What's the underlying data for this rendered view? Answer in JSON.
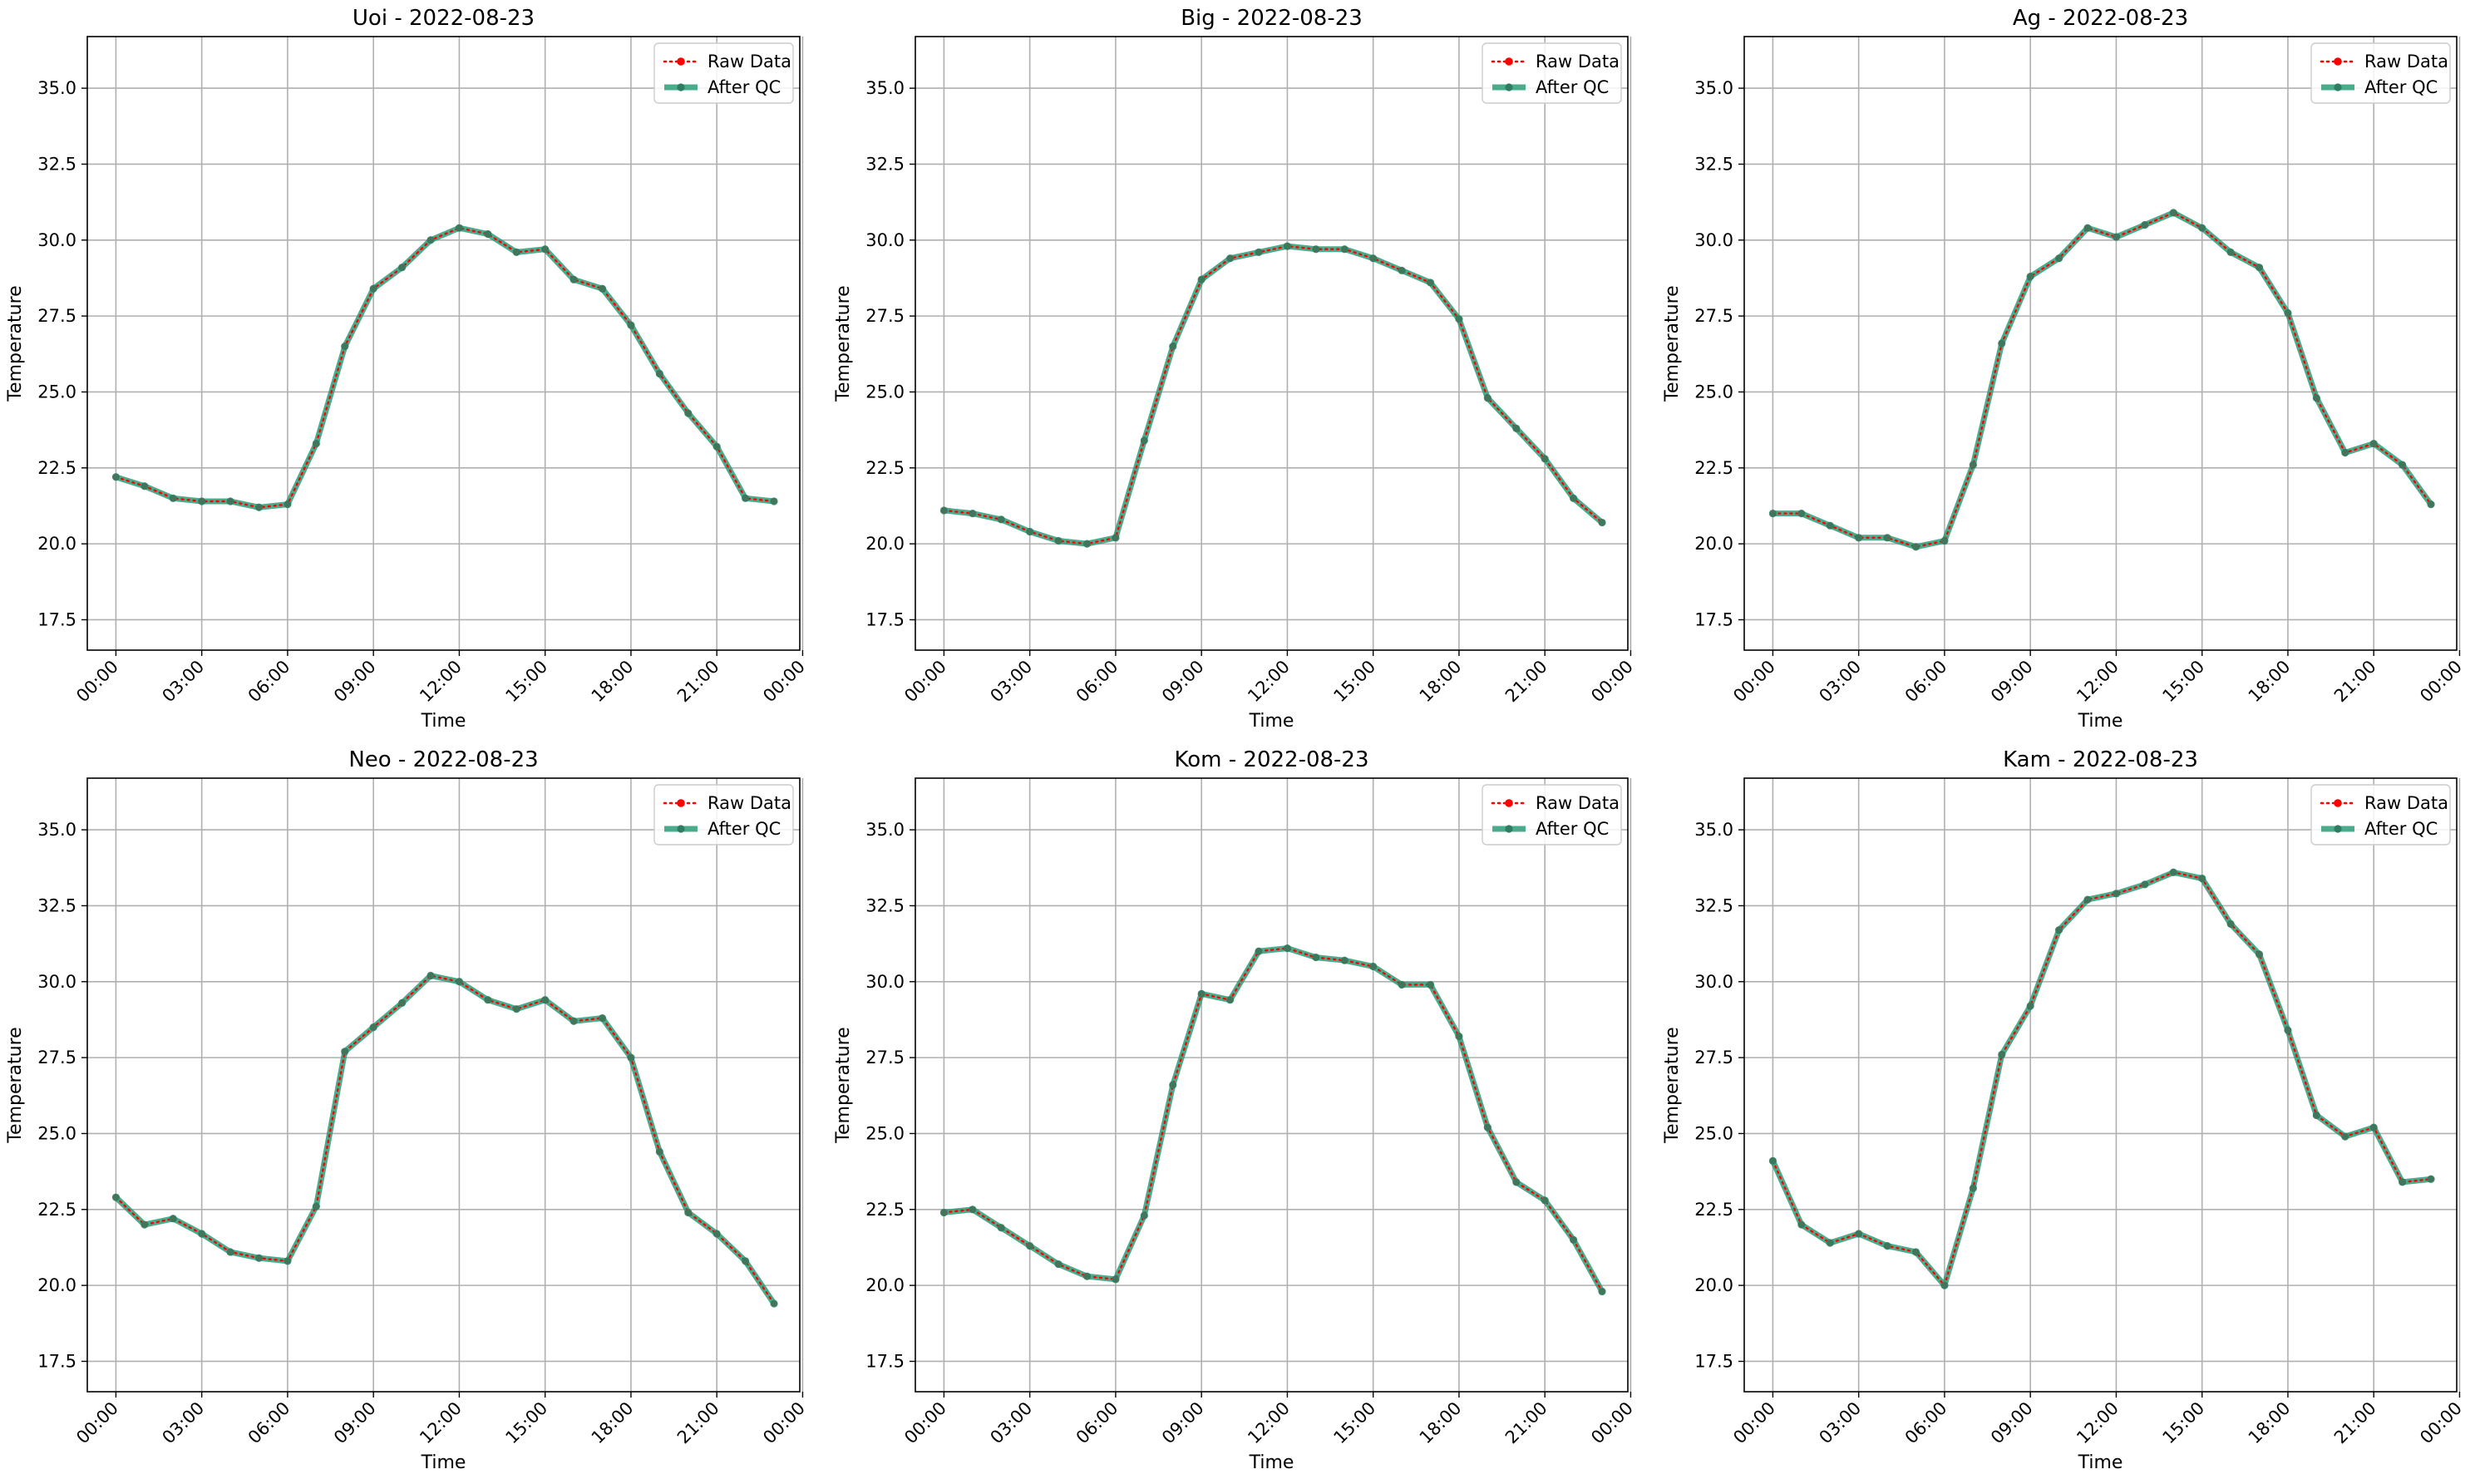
{
  "figure": {
    "background": "#ffffff"
  },
  "colors": {
    "raw": "#ff0000",
    "qc": "#2a9d78",
    "grid": "#b0b0b0"
  },
  "chart_data": [
    {
      "type": "line",
      "title": "Uoi - 2022-08-23",
      "xlabel": "Time",
      "ylabel": "Temperature",
      "ylim": [
        16.5,
        36.7
      ],
      "xlim_hours": [
        -1.0,
        23.9
      ],
      "yticks": [
        "17.5",
        "20.0",
        "22.5",
        "25.0",
        "27.5",
        "30.0",
        "32.5",
        "35.0"
      ],
      "xticks": [
        "00:00",
        "03:00",
        "06:00",
        "09:00",
        "12:00",
        "15:00",
        "18:00",
        "21:00",
        "00:00"
      ],
      "grid": true,
      "legend": "top-right",
      "x": [
        "00:00",
        "01:00",
        "02:00",
        "03:00",
        "04:00",
        "05:00",
        "06:00",
        "07:00",
        "08:00",
        "09:00",
        "10:00",
        "11:00",
        "12:00",
        "13:00",
        "14:00",
        "15:00",
        "16:00",
        "17:00",
        "18:00",
        "19:00",
        "20:00",
        "21:00",
        "22:00",
        "23:00"
      ],
      "series": [
        {
          "name": "Raw Data",
          "values": [
            22.2,
            21.9,
            21.5,
            21.4,
            21.4,
            21.2,
            21.3,
            23.3,
            26.5,
            28.4,
            29.1,
            30.0,
            30.4,
            30.2,
            29.6,
            29.7,
            28.7,
            28.4,
            27.2,
            25.6,
            24.3,
            23.2,
            21.5,
            21.4
          ]
        },
        {
          "name": "After QC",
          "values": [
            22.2,
            21.9,
            21.5,
            21.4,
            21.4,
            21.2,
            21.3,
            23.3,
            26.5,
            28.4,
            29.1,
            30.0,
            30.4,
            30.2,
            29.6,
            29.7,
            28.7,
            28.4,
            27.2,
            25.6,
            24.3,
            23.2,
            21.5,
            21.4
          ]
        }
      ]
    },
    {
      "type": "line",
      "title": "Big - 2022-08-23",
      "xlabel": "Time",
      "ylabel": "Temperature",
      "ylim": [
        16.5,
        36.7
      ],
      "xlim_hours": [
        -1.0,
        23.9
      ],
      "yticks": [
        "17.5",
        "20.0",
        "22.5",
        "25.0",
        "27.5",
        "30.0",
        "32.5",
        "35.0"
      ],
      "xticks": [
        "00:00",
        "03:00",
        "06:00",
        "09:00",
        "12:00",
        "15:00",
        "18:00",
        "21:00",
        "00:00"
      ],
      "grid": true,
      "legend": "top-right",
      "x": [
        "00:00",
        "01:00",
        "02:00",
        "03:00",
        "04:00",
        "05:00",
        "06:00",
        "07:00",
        "08:00",
        "09:00",
        "10:00",
        "11:00",
        "12:00",
        "13:00",
        "14:00",
        "15:00",
        "16:00",
        "17:00",
        "18:00",
        "19:00",
        "20:00",
        "21:00",
        "22:00",
        "23:00"
      ],
      "series": [
        {
          "name": "Raw Data",
          "values": [
            21.1,
            21.0,
            20.8,
            20.4,
            20.1,
            20.0,
            20.2,
            23.4,
            26.5,
            28.7,
            29.4,
            29.6,
            29.8,
            29.7,
            29.7,
            29.4,
            29.0,
            28.6,
            27.4,
            24.8,
            23.8,
            22.8,
            21.5,
            20.7
          ]
        },
        {
          "name": "After QC",
          "values": [
            21.1,
            21.0,
            20.8,
            20.4,
            20.1,
            20.0,
            20.2,
            23.4,
            26.5,
            28.7,
            29.4,
            29.6,
            29.8,
            29.7,
            29.7,
            29.4,
            29.0,
            28.6,
            27.4,
            24.8,
            23.8,
            22.8,
            21.5,
            20.7
          ]
        }
      ]
    },
    {
      "type": "line",
      "title": "Ag - 2022-08-23",
      "xlabel": "Time",
      "ylabel": "Temperature",
      "ylim": [
        16.5,
        36.7
      ],
      "xlim_hours": [
        -1.0,
        23.9
      ],
      "yticks": [
        "17.5",
        "20.0",
        "22.5",
        "25.0",
        "27.5",
        "30.0",
        "32.5",
        "35.0"
      ],
      "xticks": [
        "00:00",
        "03:00",
        "06:00",
        "09:00",
        "12:00",
        "15:00",
        "18:00",
        "21:00",
        "00:00"
      ],
      "grid": true,
      "legend": "top-right",
      "x": [
        "00:00",
        "01:00",
        "02:00",
        "03:00",
        "04:00",
        "05:00",
        "06:00",
        "07:00",
        "08:00",
        "09:00",
        "10:00",
        "11:00",
        "12:00",
        "13:00",
        "14:00",
        "15:00",
        "16:00",
        "17:00",
        "18:00",
        "19:00",
        "20:00",
        "21:00",
        "22:00",
        "23:00"
      ],
      "series": [
        {
          "name": "Raw Data",
          "values": [
            21.0,
            21.0,
            20.6,
            20.2,
            20.2,
            19.9,
            20.1,
            22.6,
            26.6,
            28.8,
            29.4,
            30.4,
            30.1,
            30.5,
            30.9,
            30.4,
            29.6,
            29.1,
            27.6,
            24.8,
            23.0,
            23.3,
            22.6,
            21.3
          ]
        },
        {
          "name": "After QC",
          "values": [
            21.0,
            21.0,
            20.6,
            20.2,
            20.2,
            19.9,
            20.1,
            22.6,
            26.6,
            28.8,
            29.4,
            30.4,
            30.1,
            30.5,
            30.9,
            30.4,
            29.6,
            29.1,
            27.6,
            24.8,
            23.0,
            23.3,
            22.6,
            21.3
          ]
        }
      ]
    },
    {
      "type": "line",
      "title": "Neo - 2022-08-23",
      "xlabel": "Time",
      "ylabel": "Temperature",
      "ylim": [
        16.5,
        36.7
      ],
      "xlim_hours": [
        -1.0,
        23.9
      ],
      "yticks": [
        "17.5",
        "20.0",
        "22.5",
        "25.0",
        "27.5",
        "30.0",
        "32.5",
        "35.0"
      ],
      "xticks": [
        "00:00",
        "03:00",
        "06:00",
        "09:00",
        "12:00",
        "15:00",
        "18:00",
        "21:00",
        "00:00"
      ],
      "grid": true,
      "legend": "top-right",
      "x": [
        "00:00",
        "01:00",
        "02:00",
        "03:00",
        "04:00",
        "05:00",
        "06:00",
        "07:00",
        "08:00",
        "09:00",
        "10:00",
        "11:00",
        "12:00",
        "13:00",
        "14:00",
        "15:00",
        "16:00",
        "17:00",
        "18:00",
        "19:00",
        "20:00",
        "21:00",
        "22:00",
        "23:00"
      ],
      "series": [
        {
          "name": "Raw Data",
          "values": [
            22.9,
            22.0,
            22.2,
            21.7,
            21.1,
            20.9,
            20.8,
            22.6,
            27.7,
            28.5,
            29.3,
            30.2,
            30.0,
            29.4,
            29.1,
            29.4,
            28.7,
            28.8,
            27.5,
            24.4,
            22.4,
            21.7,
            20.8,
            19.4
          ]
        },
        {
          "name": "After QC",
          "values": [
            22.9,
            22.0,
            22.2,
            21.7,
            21.1,
            20.9,
            20.8,
            22.6,
            27.7,
            28.5,
            29.3,
            30.2,
            30.0,
            29.4,
            29.1,
            29.4,
            28.7,
            28.8,
            27.5,
            24.4,
            22.4,
            21.7,
            20.8,
            19.4
          ]
        }
      ]
    },
    {
      "type": "line",
      "title": "Kom - 2022-08-23",
      "xlabel": "Time",
      "ylabel": "Temperature",
      "ylim": [
        16.5,
        36.7
      ],
      "xlim_hours": [
        -1.0,
        23.9
      ],
      "yticks": [
        "17.5",
        "20.0",
        "22.5",
        "25.0",
        "27.5",
        "30.0",
        "32.5",
        "35.0"
      ],
      "xticks": [
        "00:00",
        "03:00",
        "06:00",
        "09:00",
        "12:00",
        "15:00",
        "18:00",
        "21:00",
        "00:00"
      ],
      "grid": true,
      "legend": "top-right",
      "x": [
        "00:00",
        "01:00",
        "02:00",
        "03:00",
        "04:00",
        "05:00",
        "06:00",
        "07:00",
        "08:00",
        "09:00",
        "10:00",
        "11:00",
        "12:00",
        "13:00",
        "14:00",
        "15:00",
        "16:00",
        "17:00",
        "18:00",
        "19:00",
        "20:00",
        "21:00",
        "22:00",
        "23:00"
      ],
      "series": [
        {
          "name": "Raw Data",
          "values": [
            22.4,
            22.5,
            21.9,
            21.3,
            20.7,
            20.3,
            20.2,
            22.3,
            26.6,
            29.6,
            29.4,
            31.0,
            31.1,
            30.8,
            30.7,
            30.5,
            29.9,
            29.9,
            28.2,
            25.2,
            23.4,
            22.8,
            21.5,
            19.8
          ]
        },
        {
          "name": "After QC",
          "values": [
            22.4,
            22.5,
            21.9,
            21.3,
            20.7,
            20.3,
            20.2,
            22.3,
            26.6,
            29.6,
            29.4,
            31.0,
            31.1,
            30.8,
            30.7,
            30.5,
            29.9,
            29.9,
            28.2,
            25.2,
            23.4,
            22.8,
            21.5,
            19.8
          ]
        }
      ]
    },
    {
      "type": "line",
      "title": "Kam - 2022-08-23",
      "xlabel": "Time",
      "ylabel": "Temperature",
      "ylim": [
        16.5,
        36.7
      ],
      "xlim_hours": [
        -1.0,
        23.9
      ],
      "yticks": [
        "17.5",
        "20.0",
        "22.5",
        "25.0",
        "27.5",
        "30.0",
        "32.5",
        "35.0"
      ],
      "xticks": [
        "00:00",
        "03:00",
        "06:00",
        "09:00",
        "12:00",
        "15:00",
        "18:00",
        "21:00",
        "00:00"
      ],
      "grid": true,
      "legend": "top-right",
      "x": [
        "00:00",
        "01:00",
        "02:00",
        "03:00",
        "04:00",
        "05:00",
        "06:00",
        "07:00",
        "08:00",
        "09:00",
        "10:00",
        "11:00",
        "12:00",
        "13:00",
        "14:00",
        "15:00",
        "16:00",
        "17:00",
        "18:00",
        "19:00",
        "20:00",
        "21:00",
        "22:00",
        "23:00"
      ],
      "series": [
        {
          "name": "Raw Data",
          "values": [
            24.1,
            22.0,
            21.4,
            21.7,
            21.3,
            21.1,
            20.0,
            23.2,
            27.6,
            29.2,
            31.7,
            32.7,
            32.9,
            33.2,
            33.6,
            33.4,
            31.9,
            30.9,
            28.4,
            25.6,
            24.9,
            25.2,
            23.4,
            23.5
          ]
        },
        {
          "name": "After QC",
          "values": [
            24.1,
            22.0,
            21.4,
            21.7,
            21.3,
            21.1,
            20.0,
            23.2,
            27.6,
            29.2,
            31.7,
            32.7,
            32.9,
            33.2,
            33.6,
            33.4,
            31.9,
            30.9,
            28.4,
            25.6,
            24.9,
            25.2,
            23.4,
            23.5
          ]
        }
      ]
    }
  ]
}
